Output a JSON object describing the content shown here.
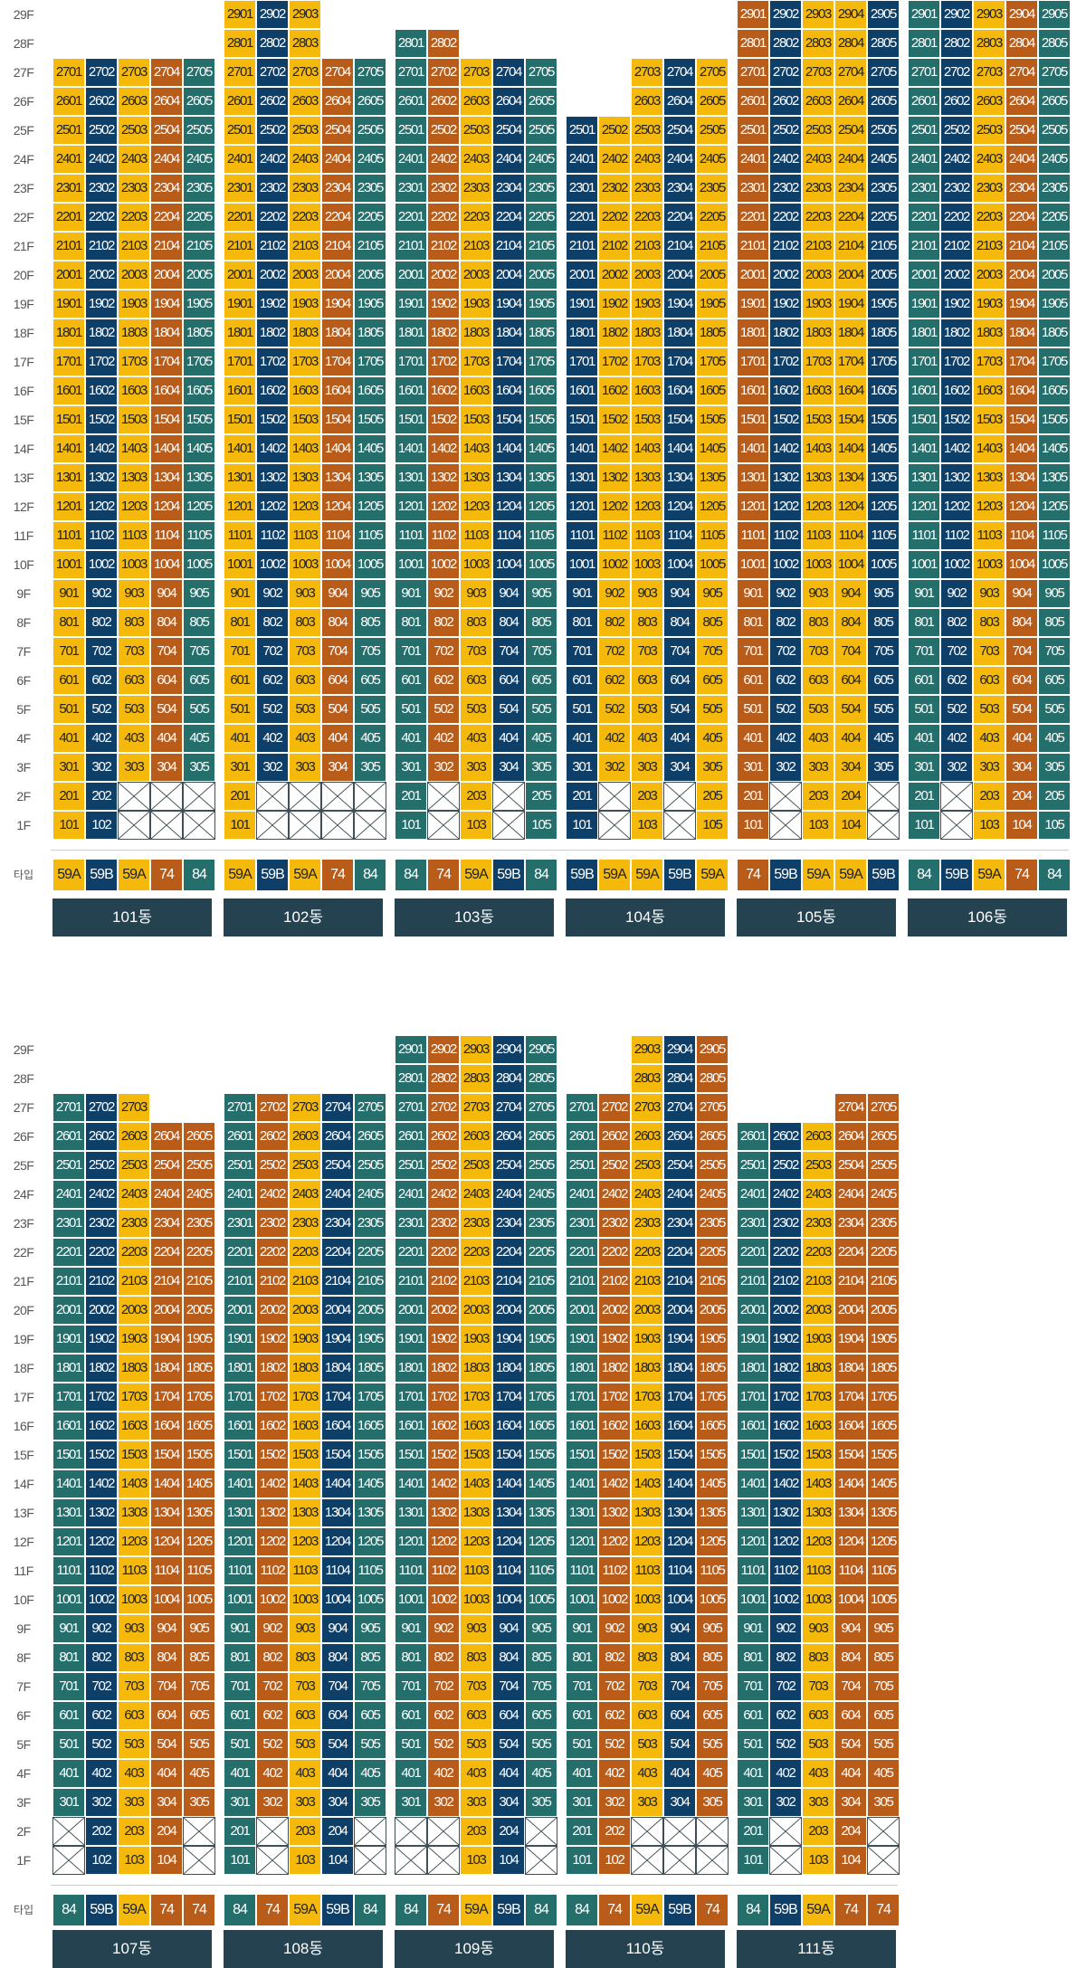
{
  "colors": {
    "59A": "#f5b90c",
    "59B": "#0e3f69",
    "74": "#b95c19",
    "84": "#246e6c",
    "building_label_bg": "#24424f",
    "empty_border": "#3f4f55"
  },
  "type_row_label": "타입",
  "floor_labels_top": [
    "29F",
    "28F",
    "27F",
    "26F",
    "25F",
    "24F",
    "23F",
    "22F",
    "21F",
    "20F",
    "19F",
    "18F",
    "17F",
    "16F",
    "15F",
    "14F",
    "13F",
    "12F",
    "11F",
    "10F",
    "9F",
    "8F",
    "7F",
    "6F",
    "5F",
    "4F",
    "3F",
    "2F",
    "1F"
  ],
  "floor_labels_bottom": [
    "29F",
    "28F",
    "27F",
    "26F",
    "25F",
    "24F",
    "23F",
    "22F",
    "21F",
    "20F",
    "19F",
    "18F",
    "17F",
    "16F",
    "15F",
    "14F",
    "13F",
    "12F",
    "11F",
    "10F",
    "9F",
    "8F",
    "7F",
    "6F",
    "5F",
    "4F",
    "3F",
    "2F",
    "1F"
  ],
  "buildings": [
    {
      "name": "101동",
      "types": [
        "59A",
        "59B",
        "59A",
        "74",
        "84"
      ],
      "max_floors": [
        27,
        27,
        27,
        27,
        27
      ],
      "empty": {
        "1": [
          3,
          4,
          5
        ],
        "2": [
          3,
          4,
          5
        ]
      }
    },
    {
      "name": "102동",
      "types": [
        "59A",
        "59B",
        "59A",
        "74",
        "84"
      ],
      "max_floors": [
        29,
        29,
        29,
        27,
        27
      ],
      "empty": {
        "1": [
          2,
          3,
          4,
          5
        ],
        "2": [
          2,
          3,
          4,
          5
        ]
      }
    },
    {
      "name": "103동",
      "types": [
        "84",
        "74",
        "59A",
        "59B",
        "84"
      ],
      "max_floors": [
        28,
        28,
        27,
        27,
        27
      ],
      "empty": {
        "1": [
          2,
          4
        ],
        "2": [
          2,
          4
        ]
      }
    },
    {
      "name": "104동",
      "types": [
        "59B",
        "59A",
        "59A",
        "59B",
        "59A"
      ],
      "max_floors": [
        25,
        25,
        27,
        27,
        27
      ],
      "empty": {
        "1": [
          2,
          4
        ],
        "2": [
          2,
          4
        ]
      }
    },
    {
      "name": "105동",
      "types": [
        "74",
        "59B",
        "59A",
        "59A",
        "59B"
      ],
      "max_floors": [
        29,
        29,
        29,
        29,
        29
      ],
      "empty": {
        "1": [
          2,
          5
        ],
        "2": [
          2,
          5
        ]
      }
    },
    {
      "name": "106동",
      "types": [
        "84",
        "59B",
        "59A",
        "74",
        "84"
      ],
      "max_floors": [
        29,
        29,
        29,
        29,
        29
      ],
      "empty": {
        "1": [
          2
        ],
        "2": [
          2
        ]
      }
    },
    {
      "name": "107동",
      "types": [
        "84",
        "59B",
        "59A",
        "74",
        "74"
      ],
      "max_floors": [
        27,
        27,
        27,
        26,
        26
      ],
      "empty": {
        "1": [
          1,
          5
        ],
        "2": [
          1,
          5
        ]
      }
    },
    {
      "name": "108동",
      "types": [
        "84",
        "74",
        "59A",
        "59B",
        "84"
      ],
      "max_floors": [
        27,
        27,
        27,
        27,
        27
      ],
      "empty": {
        "1": [
          2,
          5
        ],
        "2": [
          2,
          5
        ]
      }
    },
    {
      "name": "109동",
      "types": [
        "84",
        "74",
        "59A",
        "59B",
        "84"
      ],
      "max_floors": [
        29,
        29,
        29,
        29,
        29
      ],
      "empty": {
        "1": [
          1,
          2,
          5
        ],
        "2": [
          1,
          2,
          5
        ]
      }
    },
    {
      "name": "110동",
      "types": [
        "84",
        "74",
        "59A",
        "59B",
        "74"
      ],
      "max_floors": [
        27,
        27,
        29,
        29,
        29
      ],
      "empty": {
        "1": [
          3,
          4,
          5
        ],
        "2": [
          3,
          4,
          5
        ]
      }
    },
    {
      "name": "111동",
      "types": [
        "84",
        "59B",
        "59A",
        "74",
        "74"
      ],
      "max_floors": [
        26,
        26,
        26,
        27,
        27
      ],
      "empty": {
        "1": [
          2,
          5
        ],
        "2": [
          2,
          5
        ]
      }
    }
  ]
}
